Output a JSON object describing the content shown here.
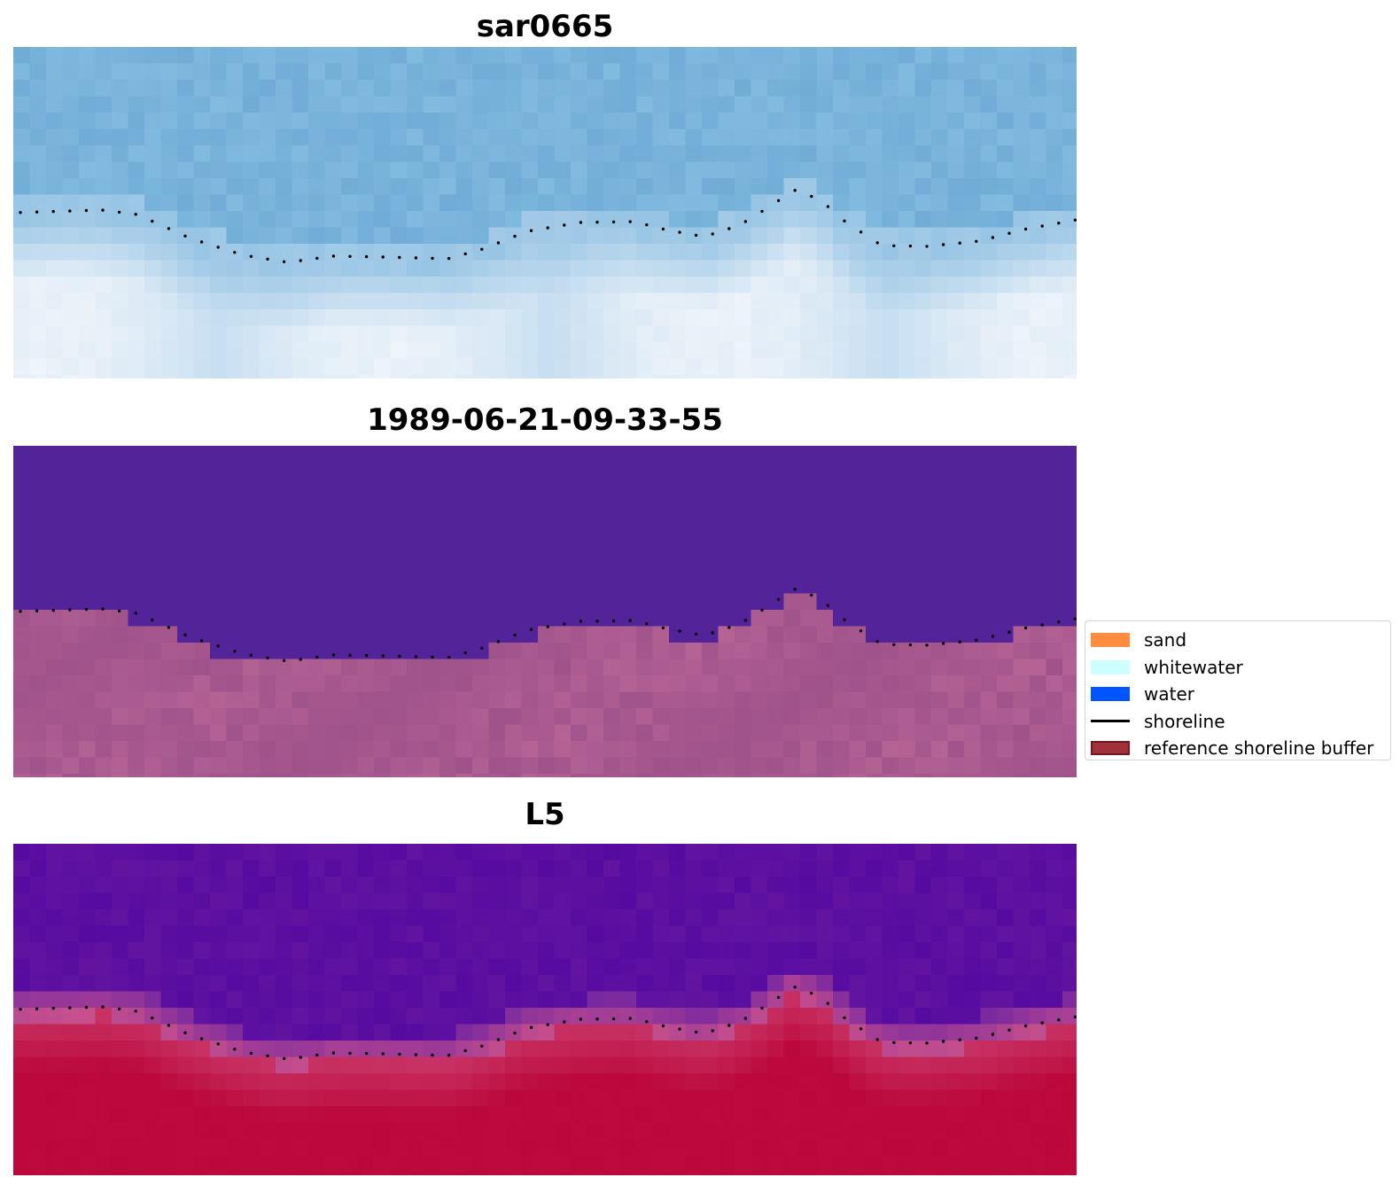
{
  "panels": [
    {
      "title": "sar0665",
      "kind": "rgb"
    },
    {
      "title": "1989-06-21-09-33-55",
      "kind": "classified"
    },
    {
      "title": "L5",
      "kind": "index"
    }
  ],
  "legend": {
    "items": [
      {
        "label": "sand",
        "type": "patch",
        "color": "#ff8c3f"
      },
      {
        "label": "whitewater",
        "type": "patch",
        "color": "#ccffff"
      },
      {
        "label": "water",
        "type": "patch",
        "color": "#0055ff"
      },
      {
        "label": "shoreline",
        "type": "line",
        "color": "#000000"
      },
      {
        "label": "reference shoreline buffer",
        "type": "patch",
        "color": "#a0313a",
        "edge": "#6e1a20"
      }
    ]
  },
  "colors": {
    "sky_blue": "#78b3da",
    "deep_purple": "#532499",
    "index_purple": "#62119b",
    "index_red": "#bd1041",
    "shoreline_dots": "#000000"
  }
}
